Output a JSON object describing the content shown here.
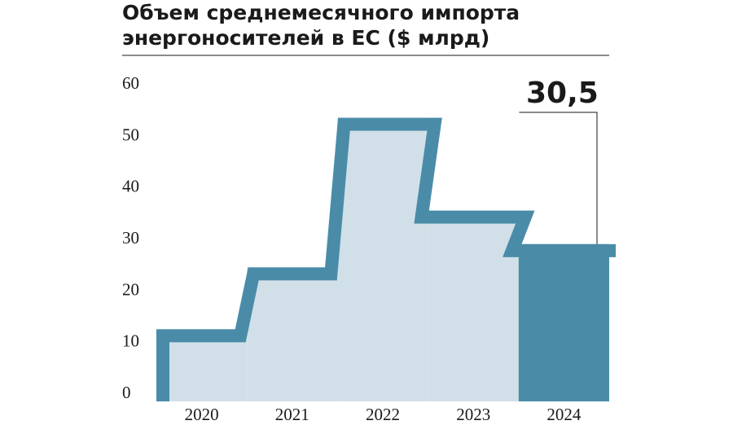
{
  "chart_data": {
    "type": "bar",
    "title_lines": [
      "Объем среднемесячного импорта",
      "энергоносителей в ЕС ($ млрд)"
    ],
    "categories": [
      "2020",
      "2021",
      "2022",
      "2023",
      "2024"
    ],
    "values": [
      14,
      26,
      55,
      37,
      30.5
    ],
    "value_labels": [
      null,
      null,
      null,
      null,
      "30,5"
    ],
    "color": "#4a8ca8",
    "fill_color": "#d1e0e8",
    "ylim": [
      0,
      60
    ],
    "yticks": [
      0,
      10,
      20,
      30,
      40,
      50,
      60
    ]
  }
}
